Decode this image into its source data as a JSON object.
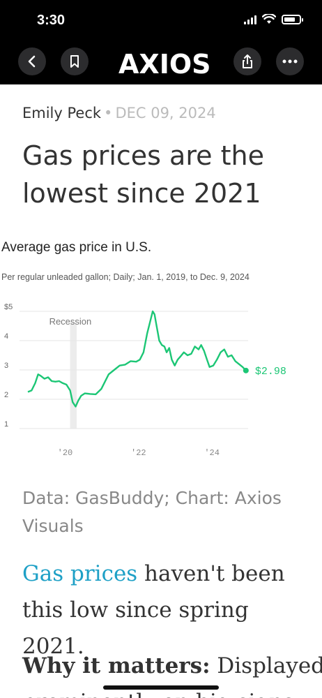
{
  "status_bar": {
    "time": "3:30"
  },
  "nav": {
    "logo": "AXIOS"
  },
  "article": {
    "author": "Emily Peck",
    "separator": "•",
    "date": "DEC 09, 2024",
    "headline": "Gas prices are the lowest since 2021"
  },
  "chart_data": {
    "type": "line",
    "title": "Average gas price in U.S.",
    "subtitle": "Per regular unleaded gallon; Daily; Jan. 1, 2019, to Dec. 9, 2024",
    "y_ticks": [
      "$5",
      "4",
      "3",
      "2",
      "1"
    ],
    "x_ticks": [
      "'20",
      "'22",
      "'24"
    ],
    "ylim": [
      1,
      5
    ],
    "xlim": [
      2019.0,
      2025.0
    ],
    "annotation": "Recession",
    "recession": [
      2020.15,
      2020.33
    ],
    "end_label": "$2.98",
    "series": [
      {
        "x": [
          2019.0,
          2019.1,
          2019.2,
          2019.28,
          2019.35,
          2019.45,
          2019.55,
          2019.65,
          2019.75,
          2019.85,
          2019.95,
          2020.05,
          2020.15,
          2020.22,
          2020.3,
          2020.37,
          2020.45,
          2020.55,
          2020.7,
          2020.85,
          2021.0,
          2021.1,
          2021.2,
          2021.35,
          2021.5,
          2021.65,
          2021.8,
          2021.95,
          2022.05,
          2022.15,
          2022.25,
          2022.32,
          2022.4,
          2022.45,
          2022.5,
          2022.58,
          2022.65,
          2022.72,
          2022.78,
          2022.85,
          2022.92,
          2023.0,
          2023.08,
          2023.15,
          2023.25,
          2023.35,
          2023.45,
          2023.55,
          2023.65,
          2023.72,
          2023.8,
          2023.88,
          2023.95,
          2024.05,
          2024.15,
          2024.25,
          2024.35,
          2024.45,
          2024.55,
          2024.65,
          2024.75,
          2024.85,
          2024.94
        ],
        "y": [
          2.25,
          2.3,
          2.55,
          2.85,
          2.8,
          2.7,
          2.75,
          2.62,
          2.6,
          2.62,
          2.55,
          2.5,
          2.3,
          1.9,
          1.75,
          1.95,
          2.12,
          2.2,
          2.18,
          2.17,
          2.35,
          2.6,
          2.85,
          3.0,
          3.15,
          3.18,
          3.3,
          3.28,
          3.35,
          3.6,
          4.25,
          4.6,
          5.0,
          4.9,
          4.55,
          4.0,
          3.85,
          3.8,
          3.6,
          3.75,
          3.35,
          3.15,
          3.35,
          3.45,
          3.6,
          3.5,
          3.55,
          3.8,
          3.7,
          3.85,
          3.65,
          3.35,
          3.1,
          3.15,
          3.35,
          3.6,
          3.7,
          3.45,
          3.5,
          3.3,
          3.2,
          3.1,
          2.98
        ]
      }
    ],
    "color": "#1cc675"
  },
  "source": "Data: GasBuddy; Chart: Axios Visuals",
  "body": {
    "link_text": "Gas prices",
    "para1_rest": " haven't been this low since spring 2021.",
    "why_label": "Why it matters:",
    "why_text": " Displayed",
    "next_line": "prominently on big signs"
  }
}
